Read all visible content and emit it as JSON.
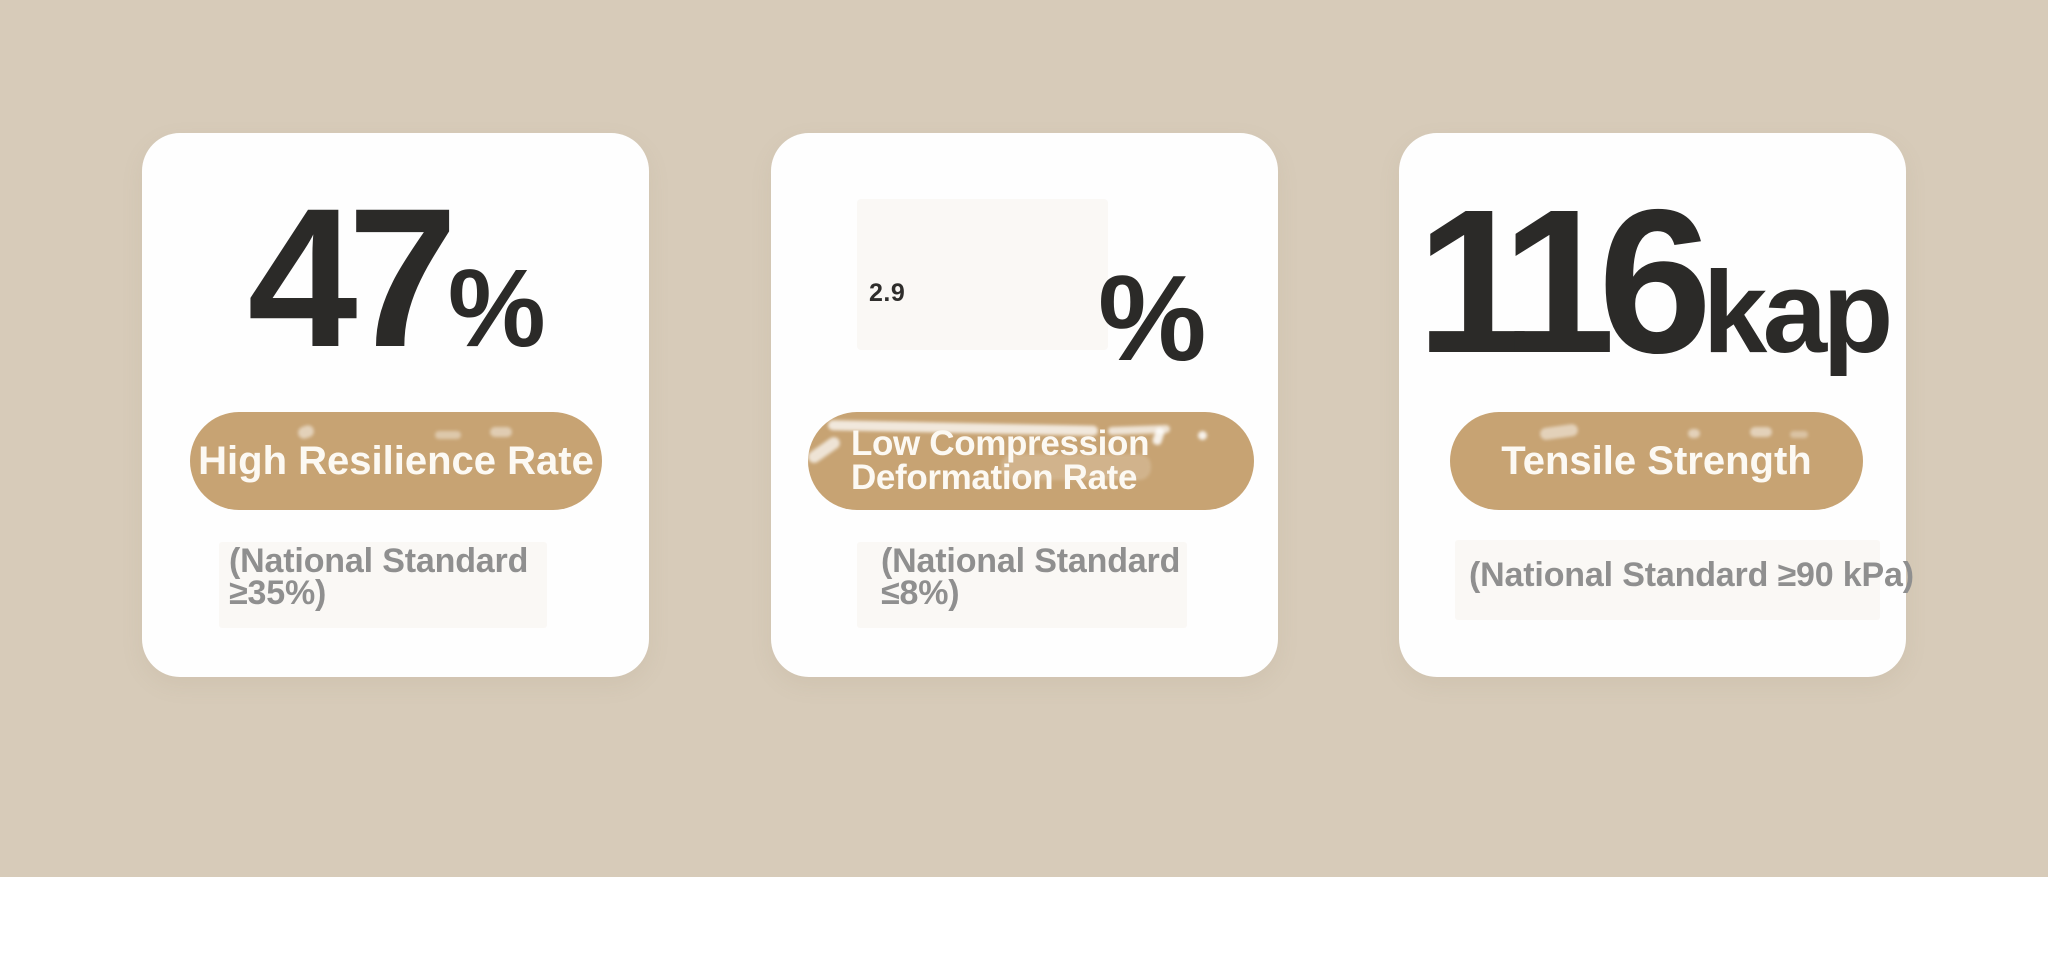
{
  "section": {
    "background_color": "#d7cbb9",
    "card_background": "#fefefe",
    "pill_color": "#c7a373",
    "value_text_color": "#2b2a28",
    "note_text_color": "#8f8f8f",
    "footer_background": "#ffffff"
  },
  "cards": [
    {
      "value": "47",
      "unit": "%",
      "label": "High Resilience Rate",
      "standard_lines": [
        "(National Standard",
        "≥35%)"
      ]
    },
    {
      "value": "2.9",
      "unit": "%",
      "label": "Low Compression Deformation Rate",
      "label_lines": [
        "Low Compression",
        "Deformation Rate"
      ],
      "standard_lines": [
        "(National Standard",
        "≤8%)"
      ]
    },
    {
      "value": "116",
      "unit": "kap",
      "label": "Tensile Strength",
      "standard_lines": [
        "(National Standard ≥90 kPa)"
      ]
    }
  ]
}
